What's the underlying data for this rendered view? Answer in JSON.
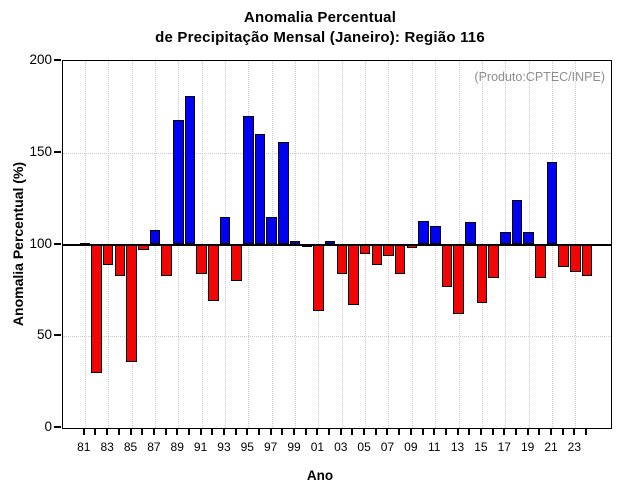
{
  "title": {
    "line1": "Anomalia Percentual",
    "line2": "de Precipitação Mensal (Janeiro): Região 116"
  },
  "annotation": "(Produto:CPTEC/INPE)",
  "chart_data": {
    "type": "bar",
    "title": "Anomalia Percentual de Precipitação Mensal (Janeiro): Região 116",
    "xlabel": "Ano",
    "ylabel": "Anomalia Percentual (%)",
    "ylim": [
      0,
      200
    ],
    "yticks": [
      0,
      50,
      100,
      150,
      200
    ],
    "baseline": 100,
    "grid": "vertical dotted at labeled years; horizontal dotted at 50 and 150; solid black line at 100",
    "legend": "none",
    "categories": [
      "81",
      "82",
      "83",
      "84",
      "85",
      "86",
      "87",
      "88",
      "89",
      "90",
      "91",
      "92",
      "93",
      "94",
      "95",
      "96",
      "97",
      "98",
      "99",
      "00",
      "01",
      "02",
      "03",
      "04",
      "05",
      "06",
      "07",
      "08",
      "09",
      "10",
      "11",
      "12",
      "13",
      "14",
      "15",
      "16",
      "17",
      "18",
      "19",
      "20",
      "21",
      "22",
      "23",
      "24"
    ],
    "values": [
      101,
      30,
      89,
      83,
      36,
      97,
      108,
      83,
      168,
      181,
      84,
      69,
      115,
      80,
      170,
      160,
      115,
      156,
      102,
      99,
      64,
      102,
      84,
      67,
      95,
      89,
      94,
      84,
      98,
      113,
      110,
      77,
      62,
      112,
      68,
      82,
      107,
      124,
      107,
      82,
      145,
      88,
      85,
      83
    ],
    "xtick_labels_shown": [
      "81",
      "83",
      "85",
      "87",
      "89",
      "91",
      "93",
      "95",
      "97",
      "99",
      "01",
      "03",
      "05",
      "07",
      "09",
      "11",
      "13",
      "15",
      "17",
      "19",
      "21",
      "23"
    ],
    "colors": {
      "above_baseline": "#0202f2",
      "below_baseline": "#f20505",
      "bar_outline": "#000000",
      "grid": "#c9c9c9",
      "annotation_text": "#8e8e8e",
      "axis": "#000000"
    }
  }
}
